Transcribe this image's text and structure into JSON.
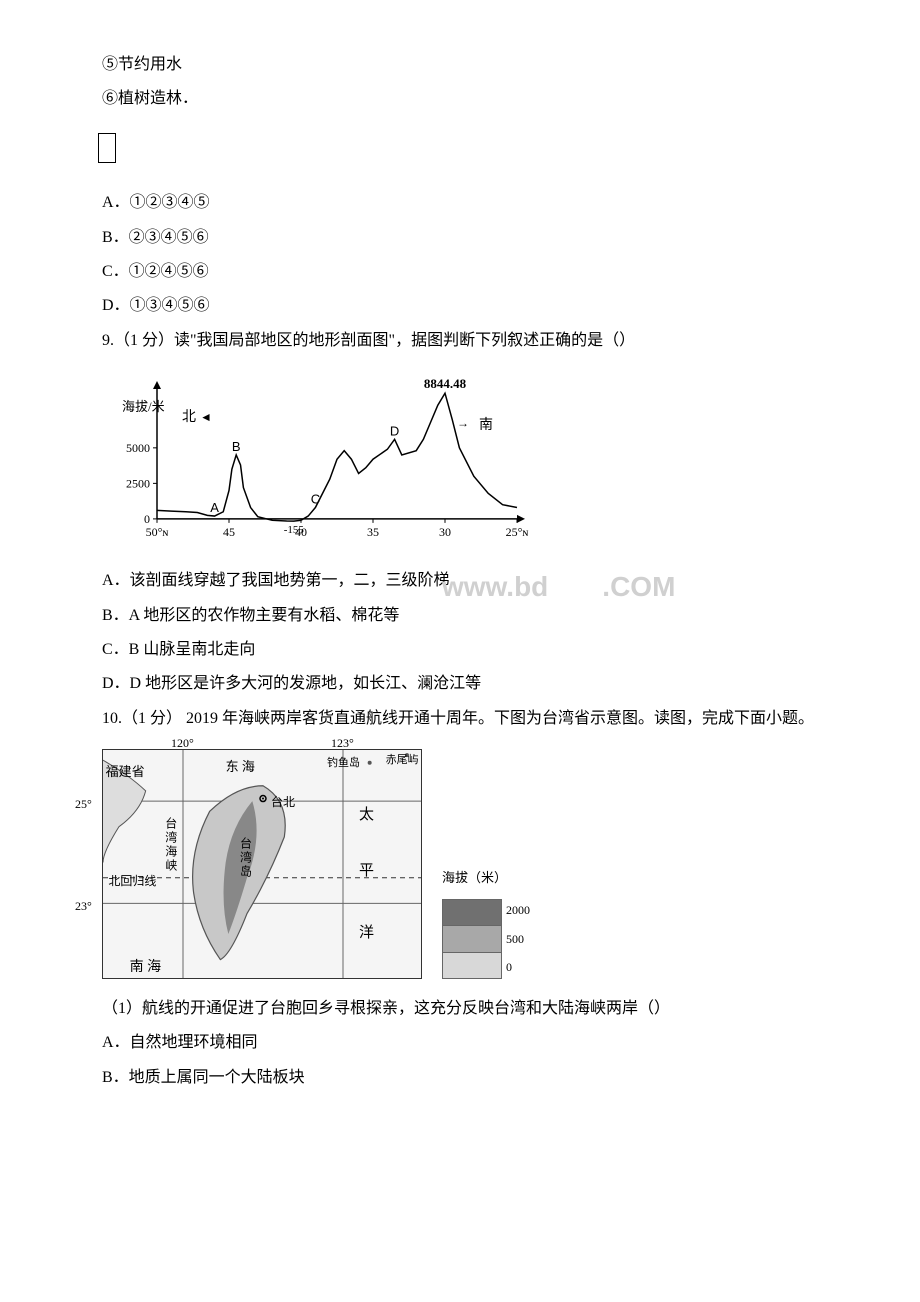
{
  "q8": {
    "opt5": "⑤节约用水",
    "opt6": "⑥植树造林．",
    "box_glyph": "",
    "a": "A．①②③④⑤",
    "b": "B．②③④⑤⑥",
    "c": "C．①②④⑤⑥",
    "d": "D．①③④⑤⑥"
  },
  "q9": {
    "stem": "9.（1 分）读\"我国局部地区的地形剖面图\"，据图判断下列叙述正确的是（）",
    "a": "A．该剖面线穿越了我国地势第一，二，三级阶梯",
    "b": "B．A 地形区的农作物主要有水稻、棉花等",
    "c": "C．B 山脉呈南北走向",
    "d": "D．D 地形区是许多大河的发源地，如长江、澜沧江等",
    "chart": {
      "type": "line",
      "title_peak": "8844.48",
      "y_axis_label": "海拔/米",
      "x_left_label": "北",
      "x_right_label": "南",
      "y_ticks": [
        "5000",
        "2500",
        "0"
      ],
      "y_tick_values": [
        5000,
        2500,
        0
      ],
      "x_ticks": [
        "50°ɴ",
        "45",
        "40",
        "35",
        "30",
        "25°ɴ"
      ],
      "x_tick_positions": [
        50,
        45,
        40,
        35,
        30,
        25
      ],
      "xlim": [
        50,
        25
      ],
      "ylim": [
        -500,
        9000
      ],
      "lowest_annot": "-155",
      "line_color": "#000000",
      "axis_color": "#000000",
      "background_color": "#ffffff",
      "point_labels": {
        "A": [
          46,
          200
        ],
        "B": [
          44.5,
          4500
        ],
        "C": [
          39,
          800
        ],
        "D": [
          33.5,
          5600
        ]
      },
      "profile_points": [
        [
          50,
          600
        ],
        [
          49,
          550
        ],
        [
          48,
          500
        ],
        [
          47.2,
          450
        ],
        [
          46.5,
          250
        ],
        [
          46,
          200
        ],
        [
          45.4,
          500
        ],
        [
          45,
          2000
        ],
        [
          44.8,
          3500
        ],
        [
          44.5,
          4500
        ],
        [
          44.2,
          3800
        ],
        [
          44,
          2200
        ],
        [
          43.5,
          800
        ],
        [
          43,
          150
        ],
        [
          42,
          -100
        ],
        [
          41,
          -150
        ],
        [
          40.5,
          -155
        ],
        [
          40,
          -100
        ],
        [
          39.5,
          200
        ],
        [
          39,
          800
        ],
        [
          38,
          2800
        ],
        [
          37.5,
          4200
        ],
        [
          37,
          4800
        ],
        [
          36.5,
          4200
        ],
        [
          36,
          3200
        ],
        [
          35.5,
          3600
        ],
        [
          35,
          4200
        ],
        [
          34,
          4900
        ],
        [
          33.5,
          5600
        ],
        [
          33,
          4500
        ],
        [
          32,
          4800
        ],
        [
          31.5,
          5600
        ],
        [
          31,
          6800
        ],
        [
          30.5,
          8000
        ],
        [
          30,
          8844
        ],
        [
          29.5,
          7000
        ],
        [
          29,
          5000
        ],
        [
          28,
          3000
        ],
        [
          27,
          1800
        ],
        [
          26,
          1000
        ],
        [
          25,
          800
        ]
      ]
    }
  },
  "q10": {
    "stem": "10.（1 分） 2019 年海峡两岸客货直通航线开通十周年。下图为台湾省示意图。读图，完成下面小题。",
    "sub1": "（1）航线的开通促进了台胞回乡寻根探亲，这充分反映台湾和大陆海峡两岸（）",
    "a": "A．自然地理环境相同",
    "b": "B．地质上属同一个大陆板块",
    "map": {
      "type": "map",
      "lon_ticks": [
        "120°",
        "123°"
      ],
      "lon_positions": [
        120,
        123
      ],
      "lat_ticks": [
        "25°",
        "23°"
      ],
      "lat_positions": [
        25,
        23
      ],
      "lon_range": [
        118.5,
        124.5
      ],
      "lat_range": [
        21.5,
        26
      ],
      "labels": {
        "fujian": "福建省",
        "donghai": "东 海",
        "diaoyu": "钓鱼岛",
        "chiwei": "赤尾屿",
        "taibei": "台北",
        "tai": "太",
        "ping": "平",
        "yang": "洋",
        "taiwan_strait": "台湾海峡",
        "nanhai": "南 海",
        "tropic": "北回归线",
        "taiwan_island": "台湾岛"
      },
      "legend": {
        "title": "海拔（米）",
        "values": [
          "2000",
          "500",
          "0"
        ],
        "colors": [
          "#707070",
          "#a8a8a8",
          "#d8d8d8"
        ]
      },
      "grid_color": "#666666",
      "border_color": "#333333",
      "background_color": "#f5f5f5"
    }
  },
  "watermark": {
    "prefix": "www.bd",
    "suffix": ".COM",
    "color": "#d0d0d0"
  }
}
